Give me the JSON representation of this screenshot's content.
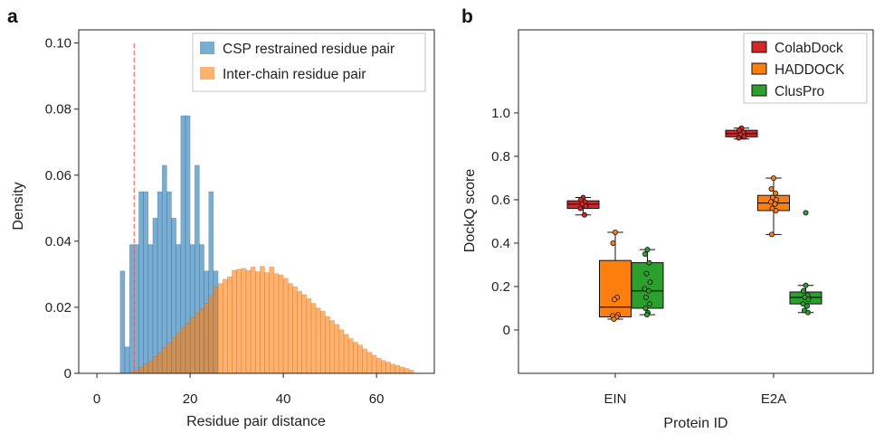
{
  "chart_data": [
    {
      "panel_label": "a",
      "type": "bar",
      "kind": "histogram",
      "xlabel": "Residue pair distance",
      "ylabel": "Density",
      "xlim": [
        -3.9,
        72.4
      ],
      "ylim": [
        0,
        0.104
      ],
      "xticks": [
        0,
        20,
        40,
        60
      ],
      "xtick_labels": [
        "0",
        "20",
        "40",
        "60"
      ],
      "yticks": [
        0,
        0.02,
        0.04,
        0.06,
        0.08,
        0.1
      ],
      "ytick_labels": [
        "0",
        "0.02",
        "0.04",
        "0.06",
        "0.08",
        "0.10"
      ],
      "grid": false,
      "legend_position": "top-right",
      "bin_width": 1,
      "series": [
        {
          "name": "CSP restrained residue pair",
          "color": "#1f77b4",
          "bin_start": 5,
          "values": [
            0.031,
            0.008,
            0.039,
            0.039,
            0.055,
            0.055,
            0.039,
            0.047,
            0.055,
            0.063,
            0.055,
            0.047,
            0.039,
            0.078,
            0.078,
            0.039,
            0.063,
            0.039,
            0.031,
            0.055,
            0.031
          ]
        },
        {
          "name": "Inter-chain residue pair",
          "color": "#ff7f0e",
          "bin_start": 7,
          "values": [
            0.0005,
            0.001,
            0.0018,
            0.0028,
            0.0038,
            0.005,
            0.0062,
            0.0078,
            0.0092,
            0.0108,
            0.0122,
            0.0138,
            0.0152,
            0.0168,
            0.0182,
            0.0196,
            0.0212,
            0.0235,
            0.0262,
            0.0272,
            0.0285,
            0.0292,
            0.0312,
            0.0315,
            0.0318,
            0.0312,
            0.0322,
            0.0308,
            0.0324,
            0.0305,
            0.0322,
            0.0302,
            0.0298,
            0.0288,
            0.0272,
            0.0262,
            0.0248,
            0.0238,
            0.0226,
            0.0212,
            0.0198,
            0.0188,
            0.0172,
            0.016,
            0.0148,
            0.0132,
            0.0118,
            0.0105,
            0.0094,
            0.0086,
            0.0074,
            0.0064,
            0.0055,
            0.0046,
            0.0039,
            0.0034,
            0.0028,
            0.0024,
            0.0019,
            0.0015,
            0.001
          ]
        }
      ],
      "reference_line": {
        "x": 8,
        "y_range": [
          0,
          0.1
        ],
        "color": "#e8736b",
        "dashed": true
      }
    },
    {
      "panel_label": "b",
      "type": "box",
      "xlabel": "Protein ID",
      "ylabel": "DockQ score",
      "categories": [
        "EIN",
        "E2A"
      ],
      "ylim": [
        -0.2,
        1.383
      ],
      "yticks": [
        0,
        0.2,
        0.4,
        0.6,
        0.8,
        1.0
      ],
      "ytick_labels": [
        "0",
        "0.2",
        "0.4",
        "0.6",
        "0.8",
        "1.0"
      ],
      "grid": false,
      "legend_position": "top-right",
      "series": [
        {
          "name": "ColabDock",
          "color": "#d62728",
          "boxes": [
            {
              "min": 0.53,
              "q1": 0.56,
              "median": 0.58,
              "q3": 0.595,
              "max": 0.61,
              "points": [
                0.61,
                0.6,
                0.59,
                0.58,
                0.57,
                0.56,
                0.53
              ],
              "outliers": []
            },
            {
              "min": 0.88,
              "q1": 0.89,
              "median": 0.905,
              "q3": 0.92,
              "max": 0.93,
              "points": [
                0.93,
                0.92,
                0.91,
                0.9,
                0.89,
                0.885
              ],
              "outliers": []
            }
          ]
        },
        {
          "name": "HADDOCK",
          "color": "#ff7f0e",
          "boxes": [
            {
              "min": 0.05,
              "q1": 0.06,
              "median": 0.105,
              "q3": 0.32,
              "max": 0.45,
              "points": [
                0.45,
                0.4,
                0.15,
                0.14,
                0.07,
                0.065,
                0.06,
                0.05
              ],
              "outliers": []
            },
            {
              "min": 0.44,
              "q1": 0.55,
              "median": 0.585,
              "q3": 0.62,
              "max": 0.7,
              "points": [
                0.7,
                0.65,
                0.63,
                0.61,
                0.6,
                0.59,
                0.58,
                0.56,
                0.55,
                0.44
              ],
              "outliers": []
            }
          ]
        },
        {
          "name": "ClusPro",
          "color": "#2ca02c",
          "boxes": [
            {
              "min": 0.07,
              "q1": 0.1,
              "median": 0.18,
              "q3": 0.31,
              "max": 0.37,
              "points": [
                0.37,
                0.35,
                0.31,
                0.26,
                0.22,
                0.19,
                0.18,
                0.15,
                0.12,
                0.1,
                0.08,
                0.07
              ],
              "outliers": []
            },
            {
              "min": 0.08,
              "q1": 0.12,
              "median": 0.15,
              "q3": 0.175,
              "max": 0.205,
              "points": [
                0.205,
                0.18,
                0.16,
                0.15,
                0.14,
                0.12,
                0.11,
                0.09,
                0.08
              ],
              "outliers": [
                0.54
              ]
            }
          ]
        }
      ]
    }
  ]
}
